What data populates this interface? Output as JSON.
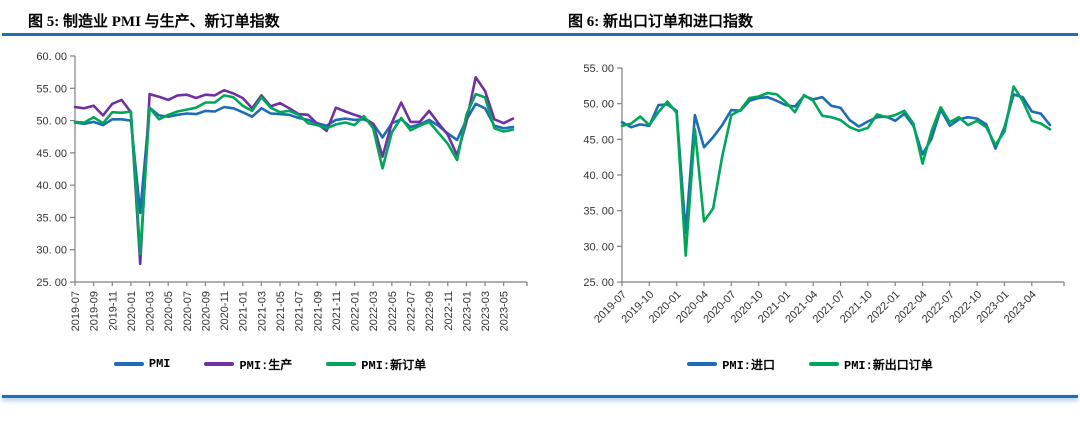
{
  "chart_data": [
    {
      "type": "line",
      "title": "图 5: 制造业 PMI 与生产、新订单指数",
      "grid": false,
      "legend_position": "bottom",
      "ylim": [
        25,
        60
      ],
      "y_ticks": [
        25,
        30,
        35,
        40,
        45,
        50,
        55,
        60
      ],
      "y_tick_labels": [
        "25. 00",
        "30. 00",
        "35. 00",
        "40. 00",
        "45. 00",
        "50. 00",
        "55. 00",
        "60. 00"
      ],
      "x_tick_every": 2,
      "x_tick_rotation": -90,
      "x_tick_labels": [
        "2019-07",
        "2019-09",
        "2019-11",
        "2020-01",
        "2020-03",
        "2020-05",
        "2020-07",
        "2020-09",
        "2020-11",
        "2021-01",
        "2021-03",
        "2021-05",
        "2021-07",
        "2021-09",
        "2021-11",
        "2022-01",
        "2022-03",
        "2022-05",
        "2022-07",
        "2022-09",
        "2022-11",
        "2023-01",
        "2023-03",
        "2023-05"
      ],
      "x": [
        "2019-07",
        "2019-08",
        "2019-09",
        "2019-10",
        "2019-11",
        "2019-12",
        "2020-01",
        "2020-02",
        "2020-03",
        "2020-04",
        "2020-05",
        "2020-06",
        "2020-07",
        "2020-08",
        "2020-09",
        "2020-10",
        "2020-11",
        "2020-12",
        "2021-01",
        "2021-02",
        "2021-03",
        "2021-04",
        "2021-05",
        "2021-06",
        "2021-07",
        "2021-08",
        "2021-09",
        "2021-10",
        "2021-11",
        "2021-12",
        "2022-01",
        "2022-02",
        "2022-03",
        "2022-04",
        "2022-05",
        "2022-06",
        "2022-07",
        "2022-08",
        "2022-09",
        "2022-10",
        "2022-11",
        "2022-12",
        "2023-01",
        "2023-02",
        "2023-03",
        "2023-04",
        "2023-05",
        "2023-06"
      ],
      "series": [
        {
          "name": "PMI",
          "color": "#1E6CB5",
          "values": [
            49.7,
            49.5,
            49.8,
            49.3,
            50.2,
            50.2,
            50.0,
            35.7,
            52.0,
            50.8,
            50.6,
            50.9,
            51.1,
            51.0,
            51.5,
            51.4,
            52.1,
            51.9,
            51.3,
            50.6,
            51.9,
            51.1,
            51.0,
            50.9,
            50.4,
            50.1,
            49.6,
            49.2,
            50.1,
            50.3,
            50.1,
            50.2,
            49.5,
            47.4,
            49.6,
            50.2,
            49.0,
            49.4,
            50.1,
            49.2,
            48.0,
            47.0,
            50.1,
            52.6,
            51.9,
            49.2,
            48.8,
            49.0
          ]
        },
        {
          "name": "PMI:生产",
          "color": "#7030A0",
          "values": [
            52.1,
            51.9,
            52.3,
            50.8,
            52.6,
            53.2,
            51.3,
            27.8,
            54.1,
            53.7,
            53.2,
            53.9,
            54.0,
            53.5,
            54.0,
            53.9,
            54.7,
            54.2,
            53.5,
            51.9,
            53.9,
            52.2,
            52.7,
            51.9,
            51.0,
            50.9,
            49.5,
            48.4,
            52.0,
            51.4,
            50.9,
            50.4,
            49.5,
            44.4,
            49.7,
            52.8,
            49.8,
            49.8,
            51.5,
            49.6,
            47.8,
            44.6,
            49.8,
            56.7,
            54.6,
            50.2,
            49.6,
            50.3
          ]
        },
        {
          "name": "PMI:新订单",
          "color": "#00A75A",
          "values": [
            49.8,
            49.7,
            50.5,
            49.6,
            51.3,
            51.2,
            51.4,
            29.3,
            52.0,
            50.2,
            50.9,
            51.4,
            51.7,
            52.0,
            52.8,
            52.8,
            53.9,
            53.6,
            52.3,
            51.5,
            53.6,
            52.0,
            51.3,
            51.5,
            50.9,
            49.6,
            49.3,
            48.8,
            49.4,
            49.7,
            49.3,
            50.7,
            48.8,
            42.6,
            48.2,
            50.4,
            48.5,
            49.2,
            49.8,
            48.1,
            46.4,
            43.9,
            50.9,
            54.1,
            53.6,
            48.8,
            48.3,
            48.6
          ]
        }
      ]
    },
    {
      "type": "line",
      "title": "图 6: 新出口订单和进口指数",
      "grid": false,
      "legend_position": "bottom",
      "ylim": [
        25,
        55
      ],
      "y_ticks": [
        25,
        30,
        35,
        40,
        45,
        50,
        55
      ],
      "y_tick_labels": [
        "25. 00",
        "30. 00",
        "35. 00",
        "40. 00",
        "45. 00",
        "50. 00",
        "55. 00"
      ],
      "x_tick_every": 3,
      "x_tick_rotation": -45,
      "x_tick_labels": [
        "2019-07",
        "2019-10",
        "2020-01",
        "2020-04",
        "2020-07",
        "2020-10",
        "2021-01",
        "2021-04",
        "2021-07",
        "2021-10",
        "2022-01",
        "2022-04",
        "2022-07",
        "2022-10",
        "2023-01",
        "2023-04"
      ],
      "x": [
        "2019-07",
        "2019-08",
        "2019-09",
        "2019-10",
        "2019-11",
        "2019-12",
        "2020-01",
        "2020-02",
        "2020-03",
        "2020-04",
        "2020-05",
        "2020-06",
        "2020-07",
        "2020-08",
        "2020-09",
        "2020-10",
        "2020-11",
        "2020-12",
        "2021-01",
        "2021-02",
        "2021-03",
        "2021-04",
        "2021-05",
        "2021-06",
        "2021-07",
        "2021-08",
        "2021-09",
        "2021-10",
        "2021-11",
        "2021-12",
        "2022-01",
        "2022-02",
        "2022-03",
        "2022-04",
        "2022-05",
        "2022-06",
        "2022-07",
        "2022-08",
        "2022-09",
        "2022-10",
        "2022-11",
        "2022-12",
        "2023-01",
        "2023-02",
        "2023-03",
        "2023-04",
        "2023-05",
        "2023-06"
      ],
      "series": [
        {
          "name": "PMI:进口",
          "color": "#1E6CB5",
          "values": [
            47.4,
            46.7,
            47.1,
            46.9,
            49.8,
            49.9,
            49.0,
            31.9,
            48.4,
            43.9,
            45.3,
            47.0,
            49.1,
            49.0,
            50.4,
            50.8,
            50.9,
            50.4,
            49.8,
            49.6,
            51.1,
            50.6,
            50.9,
            49.7,
            49.4,
            47.7,
            46.8,
            47.5,
            48.1,
            48.2,
            47.6,
            48.6,
            46.9,
            42.9,
            45.1,
            49.2,
            46.9,
            47.8,
            48.1,
            47.9,
            47.1,
            43.7,
            46.7,
            51.3,
            50.9,
            48.9,
            48.6,
            47.0
          ]
        },
        {
          "name": "PMI:新出口订单",
          "color": "#00A75A",
          "values": [
            46.9,
            47.2,
            48.2,
            47.0,
            48.8,
            50.3,
            48.7,
            28.7,
            46.4,
            33.5,
            35.3,
            42.6,
            48.4,
            49.1,
            50.8,
            51.0,
            51.5,
            51.3,
            50.2,
            48.8,
            51.2,
            50.4,
            48.3,
            48.1,
            47.7,
            46.7,
            46.2,
            46.6,
            48.5,
            48.1,
            48.4,
            49.0,
            47.2,
            41.6,
            46.2,
            49.5,
            47.4,
            48.1,
            47.0,
            47.6,
            46.7,
            44.2,
            46.1,
            52.4,
            50.4,
            47.6,
            47.2,
            46.4
          ]
        }
      ]
    }
  ],
  "style": {
    "rule_color": "#1D70B8",
    "axis_color": "#808080",
    "tick_text_color": "#333333"
  }
}
